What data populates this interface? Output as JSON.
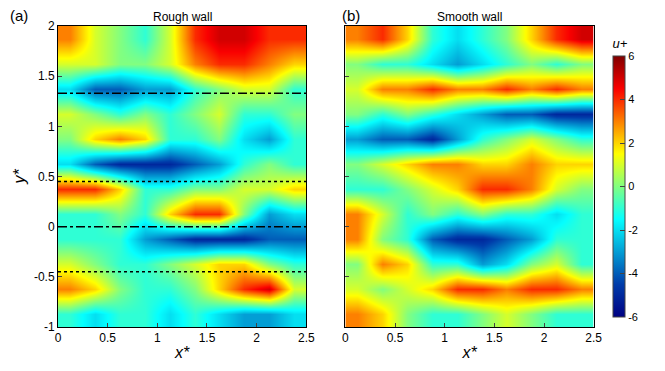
{
  "chart_data": [
    {
      "type": "heatmap",
      "panel": "(a)",
      "title": "Rough wall",
      "x_label": "x*",
      "y_label": "y*",
      "color": "Jet",
      "x": [
        0.125,
        0.375,
        0.625,
        0.875,
        1.125,
        1.375,
        1.625,
        1.875,
        2.125,
        2.375
      ],
      "y": [
        -0.875,
        -0.625,
        -0.375,
        -0.125,
        0.125,
        0.375,
        0.625,
        0.875,
        1.125,
        1.375,
        1.625,
        1.875
      ],
      "z": [
        [
          -1,
          -2,
          -1,
          -1,
          -2,
          -1,
          -2,
          -3,
          -3,
          -2
        ],
        [
          3,
          2,
          0,
          -1,
          -1,
          0,
          2,
          4,
          5,
          1
        ],
        [
          1,
          0,
          -1,
          -1,
          0,
          1,
          2,
          2,
          0,
          -1
        ],
        [
          -1,
          -1,
          -1,
          -3,
          -4,
          -5,
          -5,
          -5,
          -4,
          -4
        ],
        [
          -1,
          -1,
          0,
          -1,
          2,
          4,
          4,
          0,
          -3,
          -2
        ],
        [
          4,
          4,
          2,
          -1,
          -1,
          0,
          0,
          1,
          1,
          2
        ],
        [
          -2,
          -4,
          -5,
          -5,
          -5,
          -4,
          -3,
          -1,
          0,
          -1
        ],
        [
          0,
          2,
          3,
          2,
          -1,
          -1,
          0,
          -2,
          -3,
          -1
        ],
        [
          1,
          0,
          -1,
          0,
          -1,
          0,
          1,
          -1,
          -1,
          0
        ],
        [
          -2,
          -4,
          -4,
          -3,
          -3,
          -1,
          0,
          1,
          1,
          -1
        ],
        [
          1,
          1,
          0,
          0,
          1,
          3,
          4,
          4,
          3,
          2
        ],
        [
          3,
          1,
          0,
          -1,
          1,
          4,
          5,
          5,
          4,
          4
        ]
      ],
      "zlim": [
        -6,
        6
      ],
      "reference_lines": [
        {
          "y": 1.33,
          "line_style": "dashdot"
        },
        {
          "y": 0.45,
          "line_style": "dot"
        },
        {
          "y": 0,
          "line_style": "dashdot"
        },
        {
          "y": -0.45,
          "line_style": "dot"
        }
      ],
      "xlim": [
        0,
        2.5
      ],
      "xticks": [
        0,
        0.5,
        1,
        1.5,
        2,
        2.5
      ],
      "ylim": [
        -1,
        2
      ],
      "yticks": [
        -1,
        -0.5,
        0,
        0.5,
        1,
        1.5,
        2
      ]
    },
    {
      "type": "heatmap",
      "panel": "(b)",
      "title": "Smooth wall",
      "x_label": "x*",
      "color": "Jet",
      "tick_labels": "x",
      "x": [
        0.125,
        0.375,
        0.625,
        0.875,
        1.125,
        1.375,
        1.625,
        1.875,
        2.125,
        2.375
      ],
      "y": [
        -0.875,
        -0.625,
        -0.375,
        -0.125,
        0.125,
        0.375,
        0.625,
        0.875,
        1.125,
        1.375,
        1.625,
        1.875
      ],
      "z": [
        [
          3,
          2,
          0,
          -1,
          -1,
          0,
          1,
          0,
          -1,
          -1
        ],
        [
          1,
          0,
          1,
          2,
          4,
          4,
          3,
          4,
          4,
          3
        ],
        [
          0,
          3,
          2,
          -1,
          -1,
          -3,
          -2,
          0,
          1,
          -1
        ],
        [
          3,
          0,
          -1,
          -4,
          -5,
          -5,
          -4,
          -3,
          -1,
          -1
        ],
        [
          3,
          1,
          -1,
          0,
          -1,
          0,
          -1,
          -1,
          -2,
          -1
        ],
        [
          -1,
          -1,
          0,
          1,
          2,
          4,
          4,
          3,
          1,
          0
        ],
        [
          0,
          1,
          2,
          3,
          3,
          2,
          2,
          3,
          2,
          2
        ],
        [
          -3,
          -4,
          -4,
          -5,
          -3,
          -1,
          0,
          1,
          0,
          -1
        ],
        [
          0,
          -1,
          0,
          -1,
          -2,
          -3,
          -4,
          -4,
          -5,
          -5
        ],
        [
          1,
          3,
          3,
          4,
          3,
          3,
          4,
          3,
          4,
          3
        ],
        [
          0,
          -1,
          -1,
          -2,
          -3,
          -2,
          -1,
          0,
          -1,
          0
        ],
        [
          3,
          4,
          2,
          -1,
          -2,
          -1,
          0,
          2,
          4,
          5
        ]
      ],
      "zlim": [
        -6,
        6
      ],
      "zticks": [
        -6,
        -4,
        -2,
        0,
        2,
        4,
        6
      ],
      "colorbar_title": "u+",
      "xlim": [
        0,
        2.5
      ],
      "xticks": [
        0,
        0.5,
        1,
        1.5,
        2,
        2.5
      ],
      "ylim": [
        -1,
        2
      ],
      "yticks": [
        -1,
        -0.5,
        0,
        0.5,
        1,
        1.5,
        2
      ]
    }
  ]
}
